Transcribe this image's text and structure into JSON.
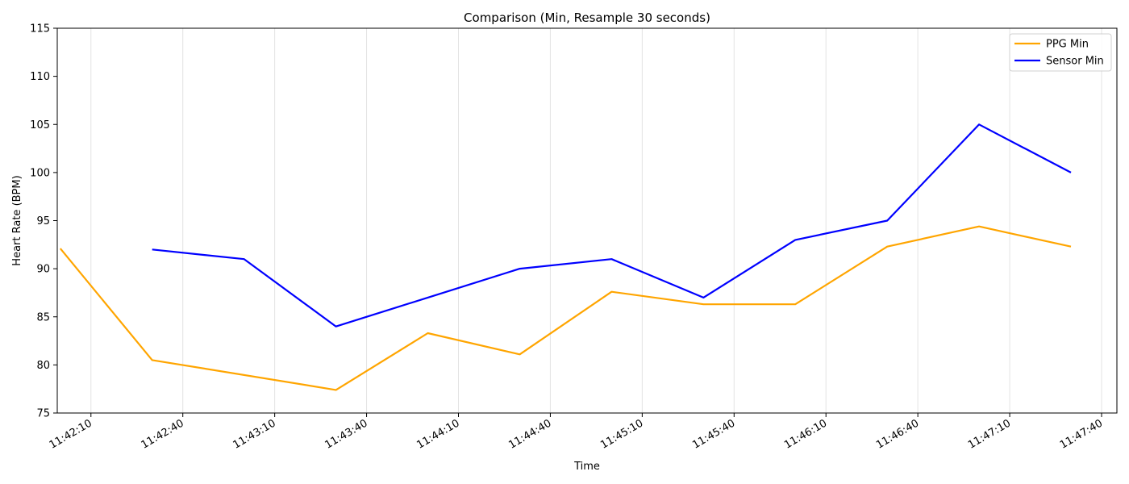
{
  "chart_data": {
    "type": "line",
    "title": "Comparison (Min, Resample 30 seconds)",
    "xlabel": "Time",
    "ylabel": "Heart Rate (BPM)",
    "ylim": [
      75,
      115
    ],
    "yticks": [
      75,
      80,
      85,
      90,
      95,
      100,
      105,
      110,
      115
    ],
    "xlim": [
      "11:41:59",
      "11:47:45"
    ],
    "xticks": [
      "11:42:10",
      "11:42:40",
      "11:43:10",
      "11:43:40",
      "11:44:10",
      "11:44:40",
      "11:45:10",
      "11:45:40",
      "11:46:10",
      "11:46:40",
      "11:47:10",
      "11:47:40"
    ],
    "grid": "x",
    "legend": "top-right",
    "series": [
      {
        "name": "PPG Min",
        "color": "#FFA500",
        "x": [
          "11:42:00",
          "11:42:30",
          "11:43:00",
          "11:43:30",
          "11:44:00",
          "11:44:30",
          "11:45:00",
          "11:45:30",
          "11:46:00",
          "11:46:30",
          "11:47:00",
          "11:47:30"
        ],
        "y": [
          92.1,
          80.5,
          null,
          77.4,
          83.3,
          81.1,
          87.6,
          86.3,
          86.3,
          92.3,
          94.4,
          92.3
        ]
      },
      {
        "name": "Sensor Min",
        "color": "#0000FF",
        "x": [
          "11:42:30",
          "11:43:00",
          "11:43:30",
          "11:44:00",
          "11:44:30",
          "11:45:00",
          "11:45:30",
          "11:46:00",
          "11:46:30",
          "11:47:00",
          "11:47:30"
        ],
        "y": [
          92,
          91,
          84,
          87,
          90,
          91,
          87,
          93,
          95,
          105,
          100
        ]
      }
    ]
  }
}
